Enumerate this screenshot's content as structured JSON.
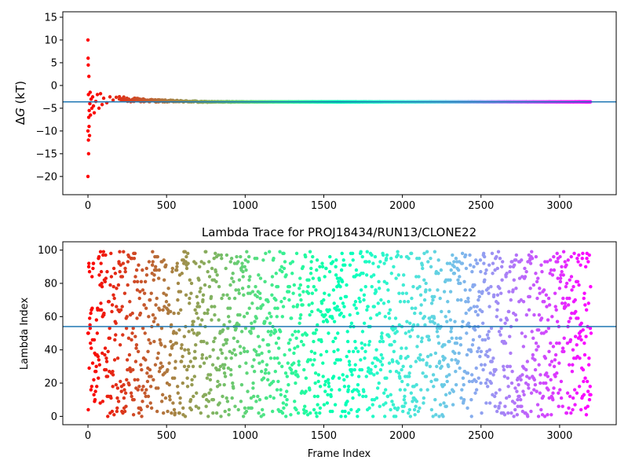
{
  "chart_data": [
    {
      "type": "scatter",
      "title": "",
      "xlabel": "",
      "ylabel": "ΔG (kT)",
      "ylabel_delta": "Δ",
      "ylabel_symbol": "G",
      "ylabel_unit": " (kT)",
      "xlim": [
        -160,
        3360
      ],
      "ylim": [
        -24,
        16.2
      ],
      "xticks": [
        0,
        500,
        1000,
        1500,
        2000,
        2500,
        3000
      ],
      "yticks": [
        -20,
        -15,
        -10,
        -5,
        0,
        5,
        10,
        15
      ],
      "xtick_labels": [
        "0",
        "500",
        "1000",
        "1500",
        "2000",
        "2500",
        "3000"
      ],
      "ytick_labels": [
        "−20",
        "−15",
        "−10",
        "−5",
        "0",
        "5",
        "10",
        "15"
      ],
      "hline": -3.6,
      "colormap": "rainbow (red at frame 0 → violet at last frame)",
      "grid": false,
      "series": [
        {
          "description": "running free-energy estimate per frame",
          "n_points": 3200,
          "final_value": -3.6,
          "early_points": [
            [
              0,
              10.0
            ],
            [
              0,
              -20.0
            ],
            [
              0,
              -10.0
            ],
            [
              1,
              6.0
            ],
            [
              2,
              4.5
            ],
            [
              3,
              -2.0
            ],
            [
              3,
              -12.0
            ],
            [
              4,
              -15.0
            ],
            [
              5,
              -7.0
            ],
            [
              6,
              2.0
            ],
            [
              7,
              -9.0
            ],
            [
              8,
              -5.5
            ],
            [
              10,
              -11.0
            ],
            [
              12,
              -4.0
            ],
            [
              14,
              -1.5
            ],
            [
              16,
              -6.5
            ],
            [
              20,
              -3.0
            ],
            [
              25,
              -5.0
            ],
            [
              30,
              -2.5
            ],
            [
              35,
              -4.5
            ],
            [
              40,
              -6.0
            ],
            [
              50,
              -3.5
            ],
            [
              60,
              -2.0
            ],
            [
              70,
              -5.0
            ],
            [
              80,
              -1.8
            ],
            [
              90,
              -4.2
            ],
            [
              100,
              -2.8
            ],
            [
              120,
              -3.8
            ],
            [
              140,
              -2.5
            ],
            [
              160,
              -3.2
            ],
            [
              180,
              -2.6
            ],
            [
              200,
              -3.0
            ]
          ]
        }
      ]
    },
    {
      "type": "scatter",
      "title": "Lambda Trace for PROJ18434/RUN13/CLONE22",
      "xlabel": "Frame Index",
      "ylabel": "Lambda Index",
      "xlim": [
        -160,
        3360
      ],
      "ylim": [
        -5,
        105
      ],
      "xticks": [
        0,
        500,
        1000,
        1500,
        2000,
        2500,
        3000
      ],
      "yticks": [
        0,
        20,
        40,
        60,
        80,
        100
      ],
      "xtick_labels": [
        "0",
        "500",
        "1000",
        "1500",
        "2000",
        "2500",
        "3000"
      ],
      "ytick_labels": [
        "0",
        "20",
        "40",
        "60",
        "80",
        "100"
      ],
      "hline": 54,
      "colormap": "rainbow (red at frame 0 → violet at last frame)",
      "grid": false,
      "series": [
        {
          "description": "lambda index visited at each frame (values 0–99, roughly uniform)",
          "n_points": 3200,
          "value_range": [
            0,
            99
          ]
        }
      ]
    }
  ]
}
